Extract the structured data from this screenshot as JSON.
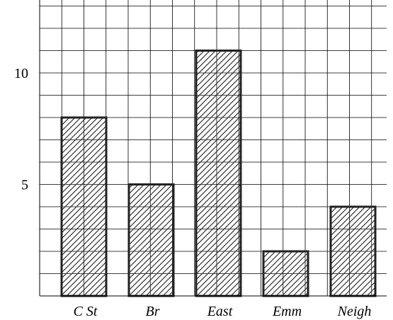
{
  "chart_data": {
    "type": "bar",
    "title": "",
    "xlabel": "",
    "ylabel": "",
    "categories": [
      "C St",
      "Br",
      "East",
      "Emm",
      "Neigh"
    ],
    "values": [
      8,
      5,
      11,
      2,
      4
    ],
    "ylim": [
      0,
      13
    ],
    "yticks": [
      5,
      10
    ],
    "ytick_labels": [
      "5",
      "10"
    ],
    "grid": true,
    "bar_fill": "diagonal-hatch",
    "colors": {
      "bar_stroke": "#222222",
      "hatch": "#333333",
      "grid": "#000000"
    }
  }
}
